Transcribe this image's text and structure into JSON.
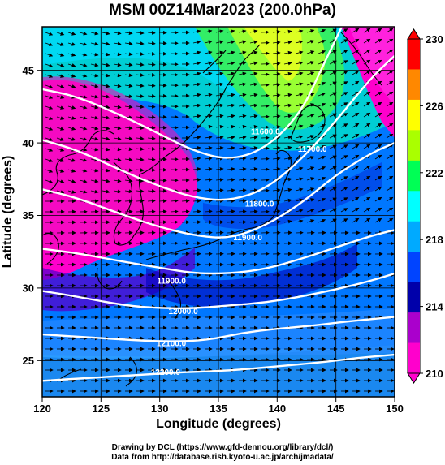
{
  "title": "MSM 00Z14Mar2023 (200.0hPa)",
  "axes": {
    "xlabel": "Longitude (degrees)",
    "ylabel": "Latitude  (degrees)",
    "xticks": [
      "120",
      "125",
      "130",
      "135",
      "140",
      "145",
      "150"
    ],
    "yticks": [
      "25",
      "30",
      "35",
      "40",
      "45"
    ]
  },
  "colorbar": {
    "ticks": [
      "230",
      "226",
      "222",
      "218",
      "214",
      "210"
    ],
    "colors": [
      "#ff0000",
      "#ff8800",
      "#ffff00",
      "#aaff00",
      "#00ff55",
      "#00ffff",
      "#00aaff",
      "#0044ff",
      "#0000aa",
      "#aa00cc",
      "#ff00cc"
    ]
  },
  "contour_labels": [
    "11600.0",
    "11700.0",
    "11800.0",
    "11900.0",
    "11900.0",
    "12000.0",
    "12100.0",
    "12200.0"
  ],
  "credits": {
    "line1": "Drawing by DCL (https://www.gfd-dennou.org/library/dcl/)",
    "line2": "Data from http://database.rish.kyoto-u.ac.jp/arch/jmadata/"
  },
  "chart_data": {
    "type": "heatmap",
    "title": "MSM 00Z14Mar2023 (200.0hPa)",
    "xlabel": "Longitude (degrees)",
    "ylabel": "Latitude  (degrees)",
    "xlim": [
      120,
      150
    ],
    "ylim": [
      22.5,
      48
    ],
    "color_range": [
      210,
      230
    ],
    "contours": [
      {
        "label": "11600.0",
        "points": [
          [
            120,
            43.7
          ],
          [
            123,
            43.2
          ],
          [
            127,
            41.8
          ],
          [
            130,
            40.6
          ],
          [
            133,
            39.4
          ],
          [
            136,
            38.8
          ],
          [
            139,
            39.6
          ],
          [
            142,
            42
          ],
          [
            144,
            45.5
          ],
          [
            145.5,
            48
          ]
        ]
      },
      {
        "label": "11700.0",
        "points": [
          [
            120,
            40.2
          ],
          [
            123,
            39.5
          ],
          [
            127,
            38
          ],
          [
            130,
            37
          ],
          [
            133,
            36.2
          ],
          [
            136,
            36
          ],
          [
            139,
            36.8
          ],
          [
            142,
            38.8
          ],
          [
            145,
            41.5
          ],
          [
            148,
            44.5
          ],
          [
            150,
            46
          ]
        ]
      },
      {
        "label": "11800.0",
        "points": [
          [
            120,
            36.8
          ],
          [
            123,
            36.2
          ],
          [
            127,
            35
          ],
          [
            130,
            34.2
          ],
          [
            133,
            33.6
          ],
          [
            136,
            33.4
          ],
          [
            139,
            34.3
          ],
          [
            142,
            35.8
          ],
          [
            145,
            37.8
          ],
          [
            148,
            39.3
          ],
          [
            150,
            40
          ]
        ]
      },
      {
        "label": "11900.0",
        "points": [
          [
            120,
            32.7
          ],
          [
            123,
            32.4
          ],
          [
            127,
            31.8
          ],
          [
            130,
            31.4
          ],
          [
            133,
            31
          ],
          [
            136,
            31
          ],
          [
            139,
            31.3
          ],
          [
            142,
            32
          ],
          [
            145,
            32.8
          ],
          [
            148,
            33.6
          ],
          [
            150,
            34
          ]
        ]
      },
      {
        "label": "12000.0",
        "points": [
          [
            120,
            29.8
          ],
          [
            123,
            29.4
          ],
          [
            127,
            28.8
          ],
          [
            130,
            28.6
          ],
          [
            133,
            28.6
          ],
          [
            136,
            28.8
          ],
          [
            139,
            29
          ],
          [
            142,
            29.4
          ],
          [
            145,
            29.9
          ],
          [
            148,
            30.5
          ],
          [
            150,
            31
          ]
        ]
      },
      {
        "label": "12100.0",
        "points": [
          [
            120,
            26.8
          ],
          [
            124,
            26.6
          ],
          [
            128,
            26.4
          ],
          [
            131,
            26.3
          ],
          [
            134,
            26.4
          ],
          [
            137,
            26.9
          ],
          [
            140,
            27.2
          ],
          [
            143,
            27.4
          ],
          [
            146,
            27.7
          ],
          [
            150,
            28
          ]
        ]
      },
      {
        "label": "12200.0",
        "points": [
          [
            120,
            23.6
          ],
          [
            124,
            23.8
          ],
          [
            128,
            24
          ],
          [
            132,
            24.2
          ],
          [
            136,
            24.3
          ],
          [
            140,
            24.6
          ],
          [
            144,
            24.9
          ],
          [
            147,
            25.2
          ],
          [
            150,
            25.4
          ]
        ]
      }
    ]
  }
}
